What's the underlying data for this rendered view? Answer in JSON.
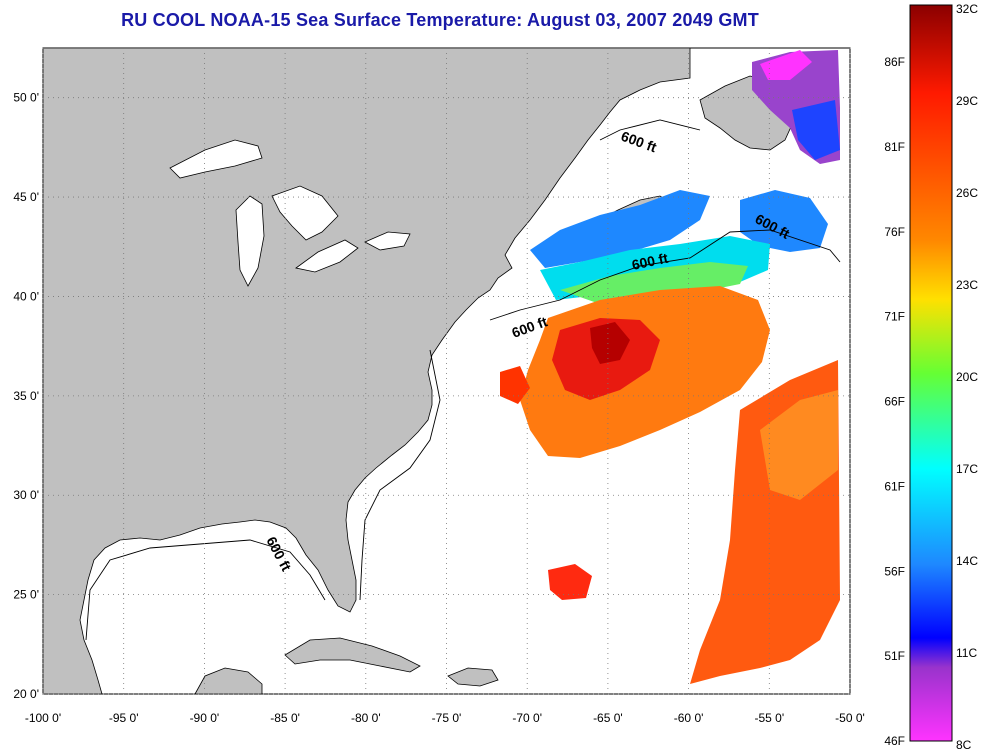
{
  "title": "RU COOL  NOAA-15  Sea Surface Temperature:  August 03, 2007 2049 GMT",
  "map": {
    "lon_range": [
      -100,
      -50
    ],
    "lat_range": [
      20,
      52.5
    ],
    "lon_ticks": [
      "-100 0'",
      "-95 0'",
      "-90 0'",
      "-85 0'",
      "-80 0'",
      "-75 0'",
      "-70 0'",
      "-65 0'",
      "-60 0'",
      "-55 0'",
      "-50 0'"
    ],
    "lat_ticks": [
      "50 0'",
      "45 0'",
      "40 0'",
      "35 0'",
      "30 0'",
      "25 0'",
      "20 0'"
    ],
    "land_color": "#c0c0c0",
    "ocean_color": "#ffffff",
    "grid": "dotted",
    "contour_labels": [
      {
        "text": "600 ft"
      },
      {
        "text": "600 ft"
      },
      {
        "text": "600 ft"
      },
      {
        "text": "600 ft"
      },
      {
        "text": "600 ft"
      }
    ]
  },
  "colorbar": {
    "celsius_labels": [
      "32C",
      "29C",
      "26C",
      "23C",
      "20C",
      "17C",
      "14C",
      "11C",
      "8C"
    ],
    "fahrenheit_labels": [
      "86F",
      "81F",
      "76F",
      "71F",
      "66F",
      "61F",
      "56F",
      "51F",
      "46F"
    ],
    "colors": [
      "#8b0000",
      "#ff1a00",
      "#ff8800",
      "#ffe000",
      "#66ff33",
      "#00ffff",
      "#1e88ff",
      "#0000ff",
      "#9933cc",
      "#ff33ff"
    ]
  }
}
